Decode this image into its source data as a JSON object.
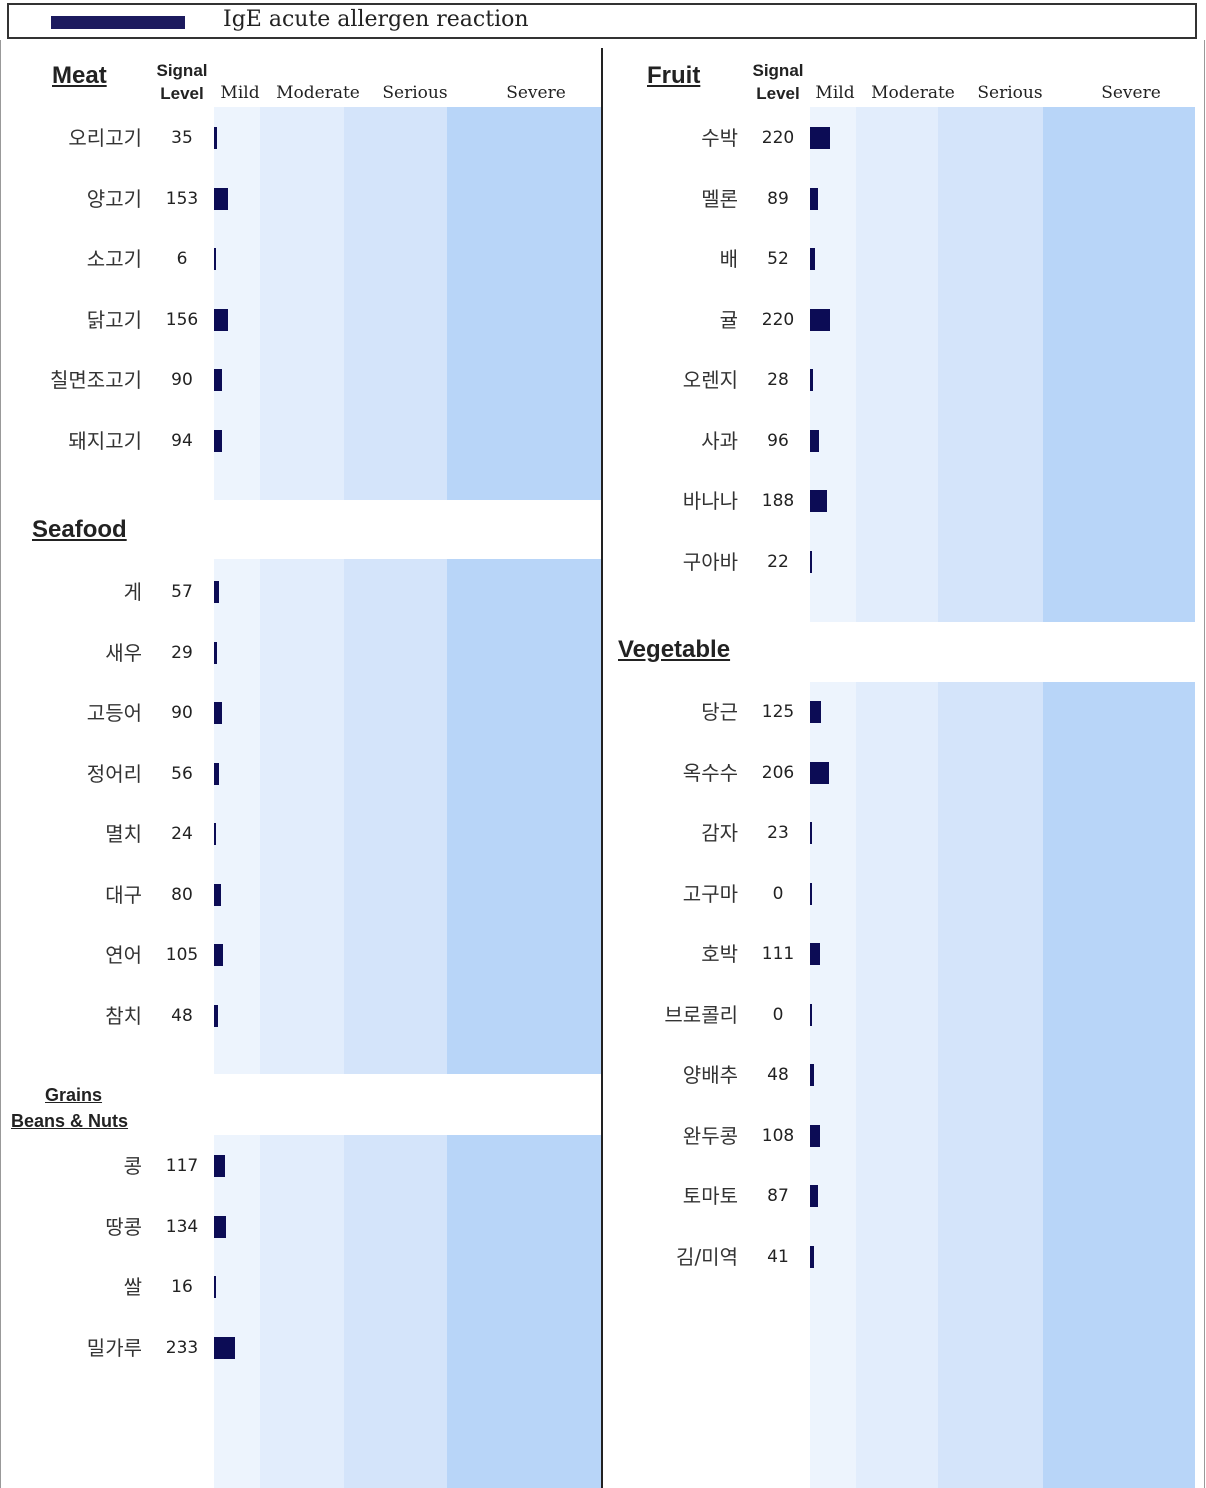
{
  "legend": {
    "label": "IgE acute allergen reaction",
    "color": "#1c1a5e"
  },
  "headers": {
    "signal_line1": "Signal",
    "signal_line2": "Level",
    "categories": [
      "Mild",
      "Moderate",
      "Serious",
      "Severe"
    ]
  },
  "band_colors": {
    "mild": "#edf4fd",
    "moderate": "#e2edfc",
    "serious": "#d4e4fa",
    "severe": "#b8d5f8"
  },
  "chart_data": {
    "type": "bar",
    "orientation": "horizontal",
    "value_label": "Signal Level",
    "groups": [
      {
        "title": "Meat",
        "categories": [
          "오리고기",
          "양고기",
          "소고기",
          "닭고기",
          "칠면조고기",
          "돼지고기"
        ],
        "values": [
          35,
          153,
          6,
          156,
          90,
          94
        ]
      },
      {
        "title": "Seafood",
        "categories": [
          "게",
          "새우",
          "고등어",
          "정어리",
          "멸치",
          "대구",
          "연어",
          "참치"
        ],
        "values": [
          57,
          29,
          90,
          56,
          24,
          80,
          105,
          48
        ]
      },
      {
        "title_line1": "Grains",
        "title_line2": "Beans & Nuts",
        "categories": [
          "콩",
          "땅콩",
          "쌀",
          "밀가루"
        ],
        "values": [
          117,
          134,
          16,
          233
        ]
      },
      {
        "title": "Fruit",
        "categories": [
          "수박",
          "멜론",
          "배",
          "귤",
          "오렌지",
          "사과",
          "바나나",
          "구아바"
        ],
        "values": [
          220,
          89,
          52,
          220,
          28,
          96,
          188,
          22
        ]
      },
      {
        "title": "Vegetable",
        "categories": [
          "당근",
          "옥수수",
          "감자",
          "고구마",
          "호박",
          "브로콜리",
          "양배추",
          "완두콩",
          "토마토",
          "김/미역"
        ],
        "values": [
          125,
          206,
          23,
          0,
          111,
          0,
          48,
          108,
          87,
          41
        ]
      }
    ]
  }
}
